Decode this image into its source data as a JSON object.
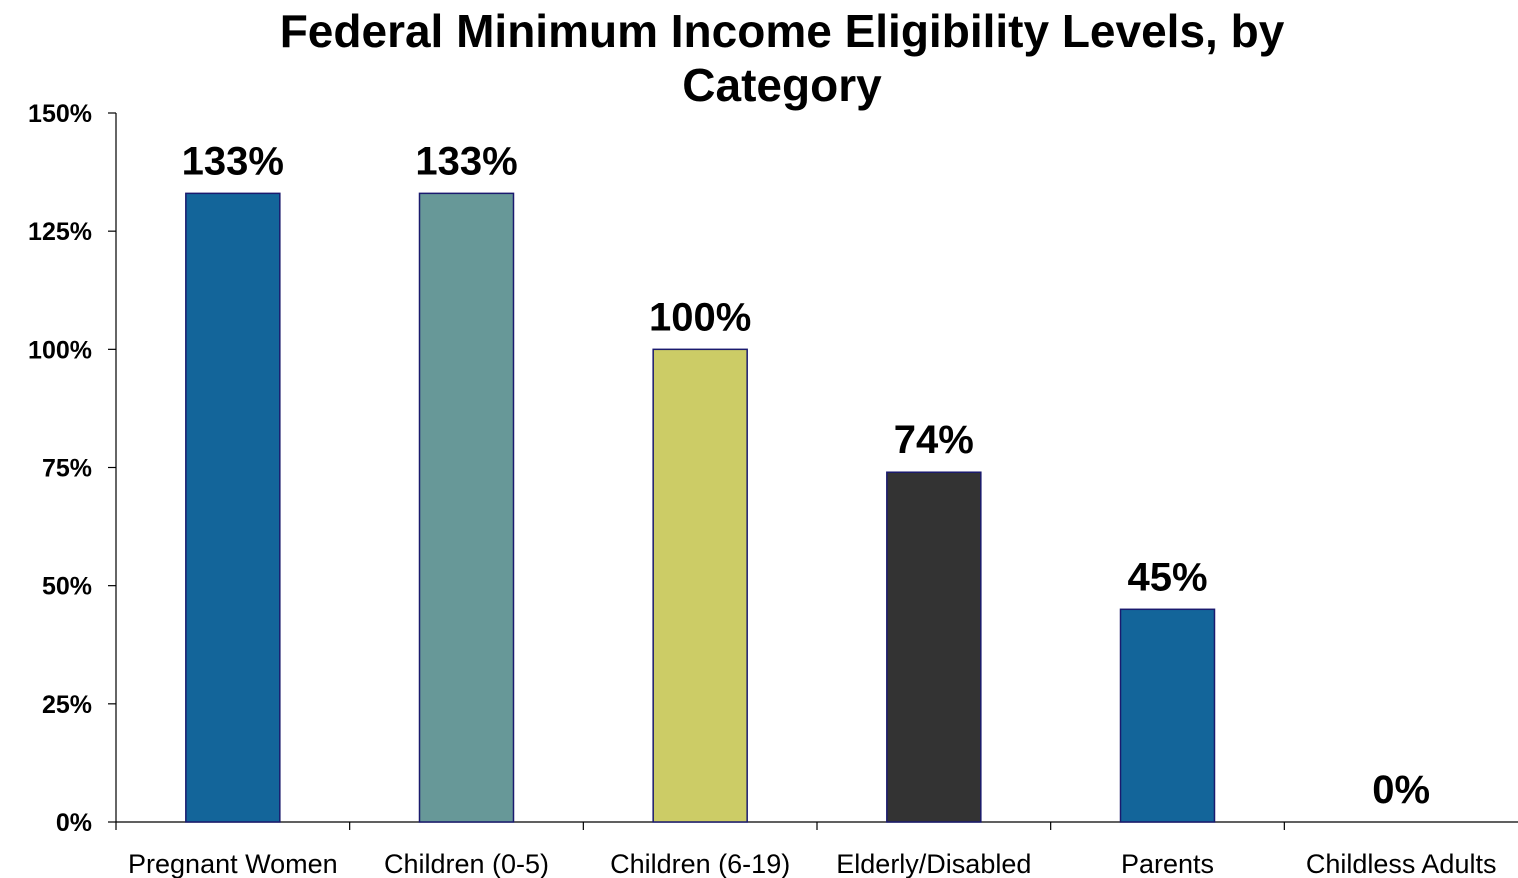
{
  "chart_data": {
    "type": "bar",
    "title": "Federal Minimum Income Eligibility Levels, by Category",
    "xlabel": "",
    "ylabel": "",
    "categories": [
      "Pregnant Women",
      "Children (0-5)",
      "Children (6-19)",
      "Elderly/Disabled",
      "Parents",
      "Childless Adults"
    ],
    "values": [
      133,
      133,
      100,
      74,
      45,
      0
    ],
    "data_labels": [
      "133%",
      "133%",
      "100%",
      "74%",
      "45%",
      "0%"
    ],
    "bar_colors": [
      "#13659a",
      "#679898",
      "#cccc66",
      "#333333",
      "#13659a",
      "#13659a"
    ],
    "bar_edge_color": "#1a1a6e",
    "ylim": [
      0,
      150
    ],
    "yticks": [
      0,
      25,
      50,
      75,
      100,
      125,
      150
    ],
    "ytick_labels": [
      "0%",
      "25%",
      "50%",
      "75%",
      "100%",
      "125%",
      "150%"
    ],
    "grid": false,
    "legend": "none"
  }
}
